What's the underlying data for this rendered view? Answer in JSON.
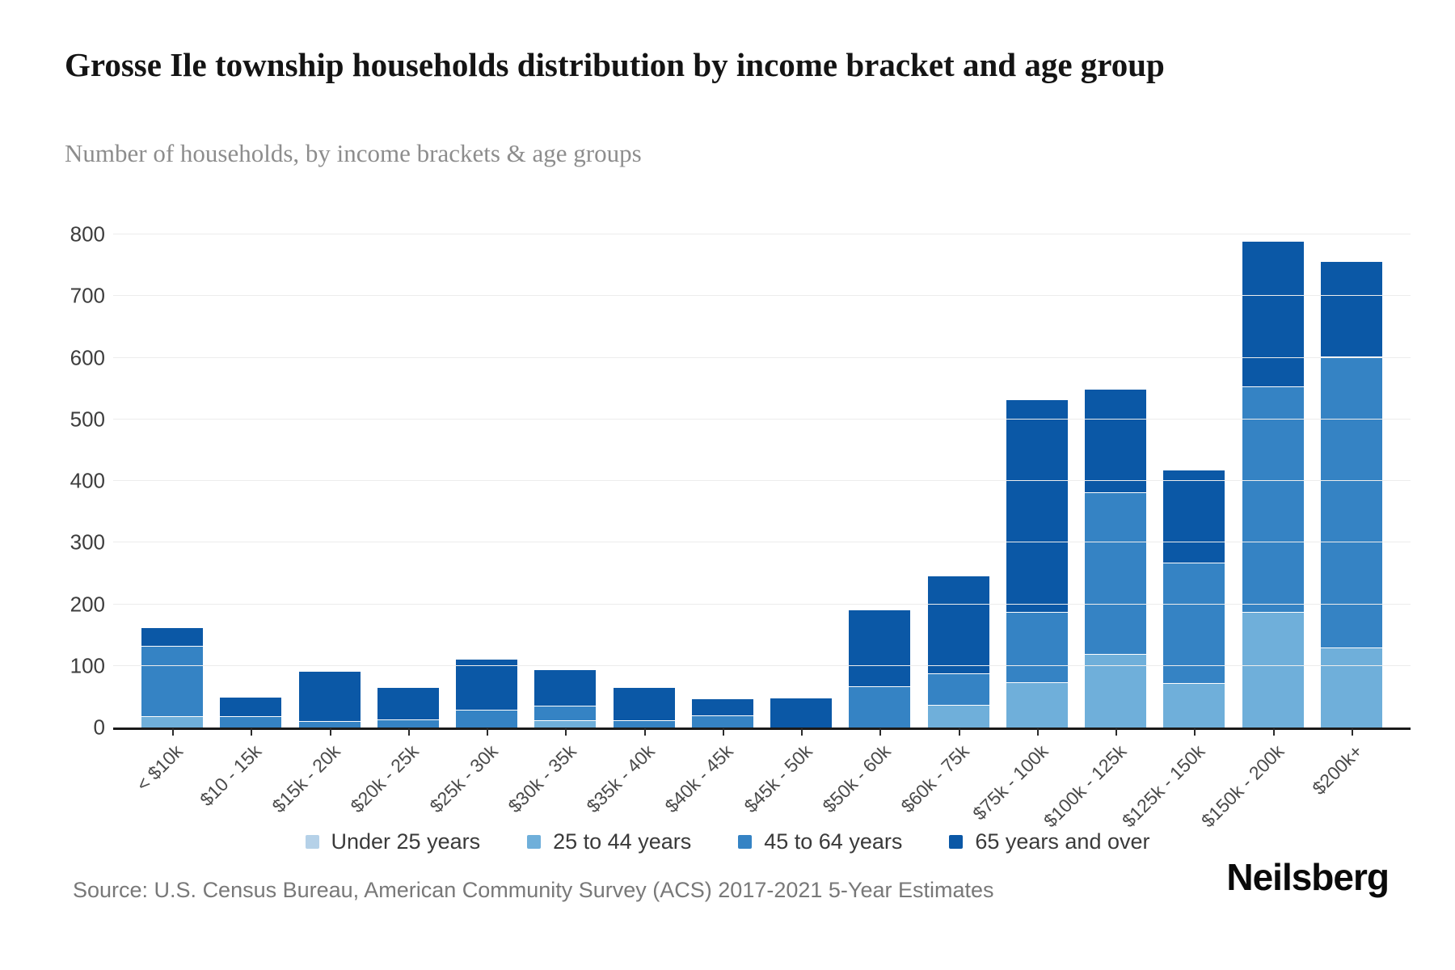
{
  "header": {
    "title": "Grosse Ile township households distribution by income bracket and age group",
    "subtitle": "Number of households, by income brackets & age groups"
  },
  "footer": {
    "source": "Source: U.S. Census Bureau, American Community Survey (ACS) 2017-2021 5-Year Estimates",
    "brand": "Neilsberg"
  },
  "chart_data": {
    "type": "bar",
    "stacked": true,
    "title": "Grosse Ile township households distribution by income bracket and age group",
    "xlabel": "",
    "ylabel": "Number of households",
    "ylim": [
      0,
      800
    ],
    "yticks": [
      0,
      100,
      200,
      300,
      400,
      500,
      600,
      700,
      800
    ],
    "grid": true,
    "legend_position": "bottom",
    "axis_color": "#1a1a1a",
    "gridline_color": "#ececec",
    "categories": [
      "< $10k",
      "$10 - 15k",
      "$15k - 20k",
      "$20k - 25k",
      "$25k - 30k",
      "$30k - 35k",
      "$35k - 40k",
      "$40k - 45k",
      "$45k - 50k",
      "$50k - 60k",
      "$60k - 75k",
      "$75k - 100k",
      "$100k - 125k",
      "$125k - 150k",
      "$150k - 200k",
      "$200k+"
    ],
    "series": [
      {
        "name": "Under 25 years",
        "color": "#b5d1e8",
        "values": [
          0,
          0,
          0,
          0,
          0,
          0,
          0,
          0,
          0,
          0,
          0,
          0,
          0,
          0,
          0,
          0
        ]
      },
      {
        "name": "25 to 44 years",
        "color": "#6fafda",
        "values": [
          18,
          0,
          0,
          0,
          0,
          12,
          0,
          0,
          0,
          0,
          37,
          74,
          120,
          72,
          188,
          130
        ]
      },
      {
        "name": "45 to 64 years",
        "color": "#3583c4",
        "values": [
          114,
          18,
          11,
          13,
          29,
          23,
          12,
          20,
          0,
          67,
          51,
          114,
          262,
          195,
          365,
          472
        ]
      },
      {
        "name": "65 years and over",
        "color": "#0b58a6",
        "values": [
          30,
          32,
          81,
          52,
          82,
          59,
          53,
          27,
          48,
          125,
          159,
          345,
          168,
          151,
          236,
          155
        ]
      }
    ]
  }
}
